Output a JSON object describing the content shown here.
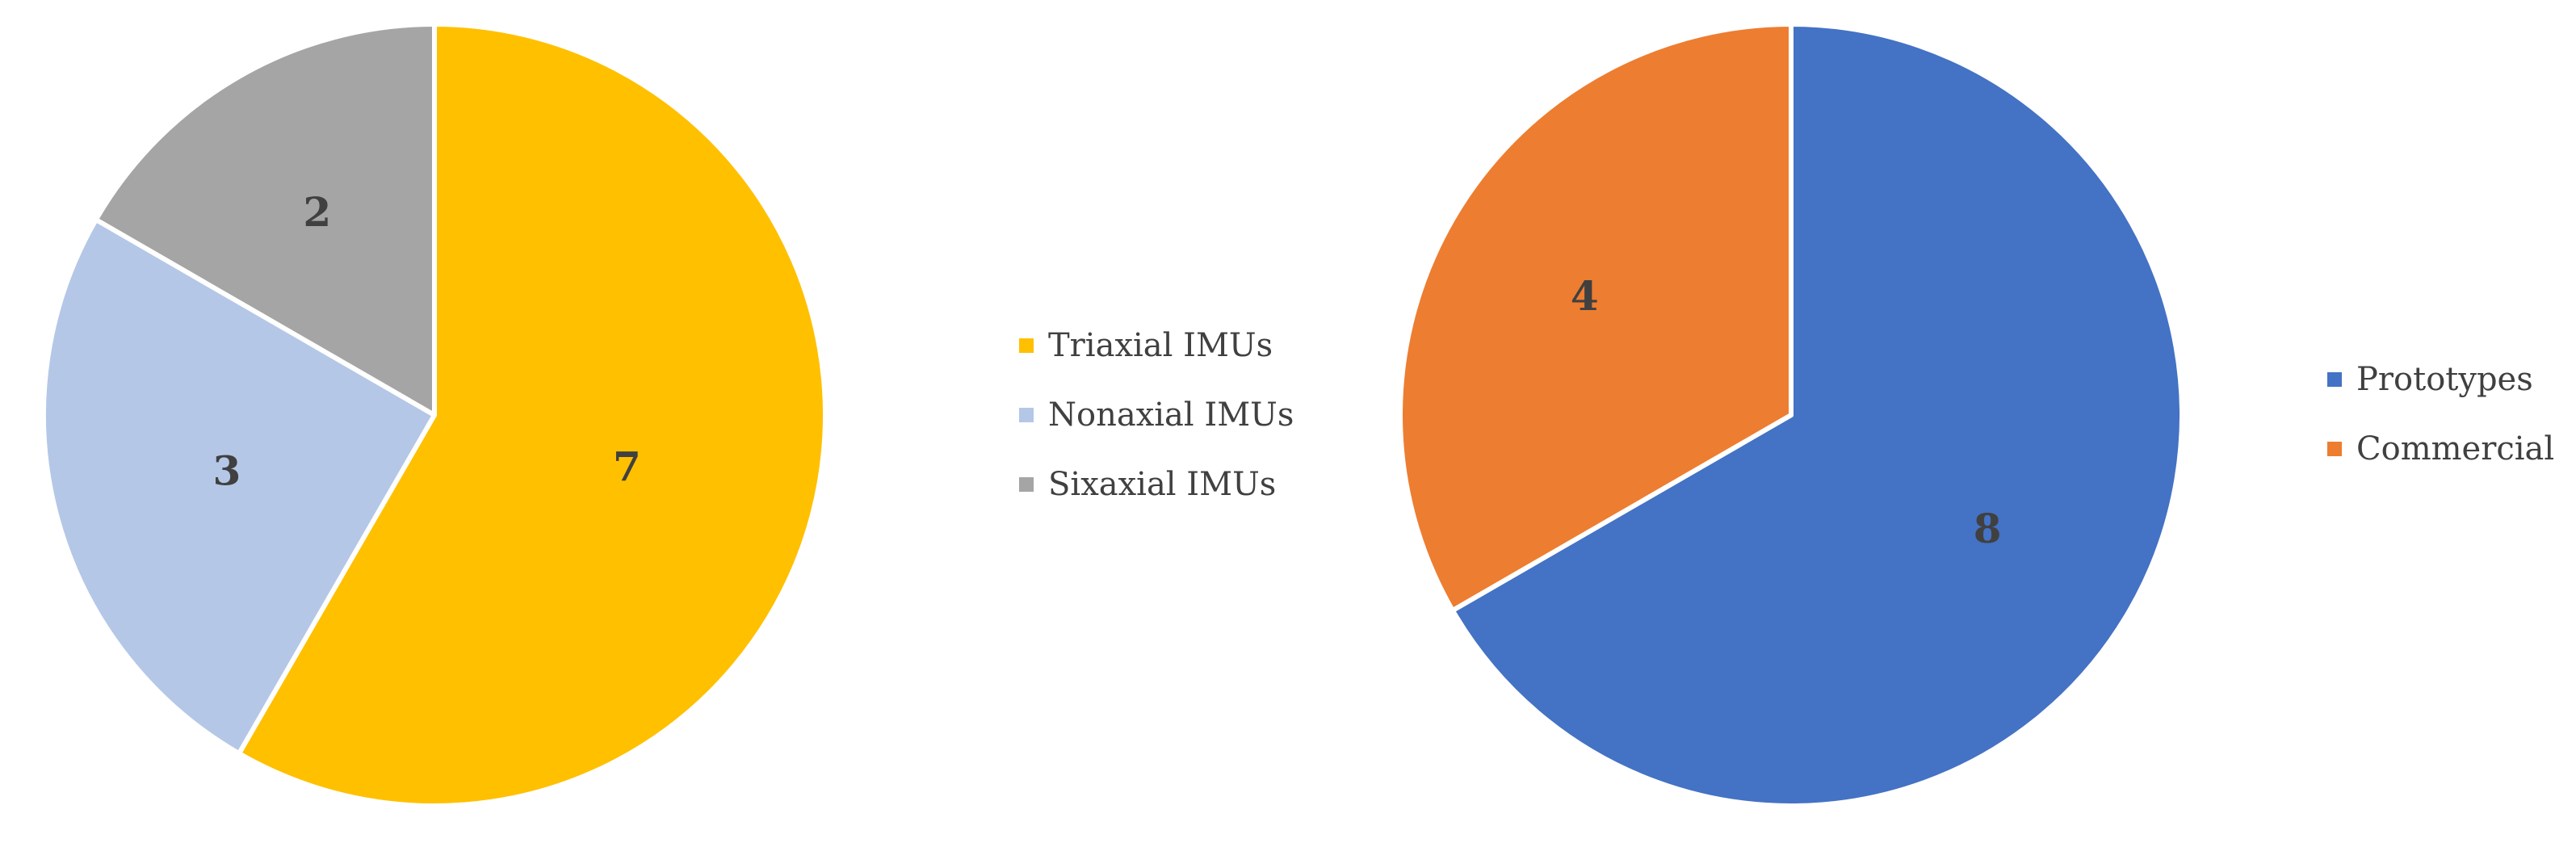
{
  "chart_data": [
    {
      "type": "pie",
      "categories": [
        "Triaxial IMUs",
        "Nonaxial IMUs",
        "Sixaxial IMUs"
      ],
      "values": [
        7,
        3,
        2
      ],
      "colors": [
        "#FFC000",
        "#B4C7E7",
        "#A5A5A5"
      ],
      "legend_position": "right"
    },
    {
      "type": "pie",
      "categories": [
        "Prototypes",
        "Commercial"
      ],
      "values": [
        8,
        4
      ],
      "colors": [
        "#4472C4",
        "#ED7D31"
      ],
      "legend_position": "right"
    }
  ]
}
